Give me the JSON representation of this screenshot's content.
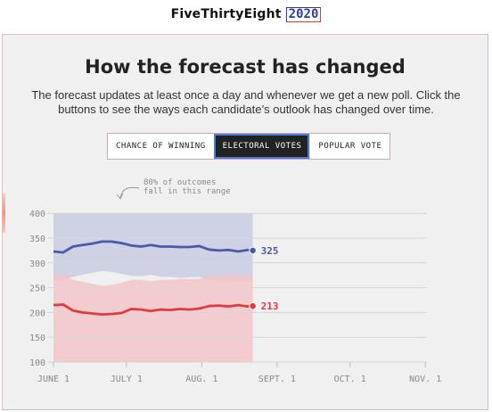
{
  "brand": {
    "name": "FiveThirtyEight",
    "year": "2020"
  },
  "card": {
    "title": "How the forecast has changed",
    "subtitle": "The forecast updates at least once a day and whenever we get a new poll. Click the buttons to see the ways each candidate’s outlook has changed over time."
  },
  "toggle": {
    "options": [
      "CHANCE OF WINNING",
      "ELECTORAL VOTES",
      "POPULAR VOTE"
    ],
    "selected": "ELECTORAL VOTES"
  },
  "colors": {
    "dem": "#4b5aa6",
    "rep": "#e03c3f",
    "dem_band": "#c9cde3",
    "rep_band": "#f3c6ca",
    "grid": "#d6d6d6"
  },
  "chart_data": {
    "type": "area",
    "annotation": [
      "80% of outcomes",
      "fall in this range"
    ],
    "y_ticks": [
      400,
      350,
      300,
      250,
      200,
      150,
      100
    ],
    "ylim": [
      100,
      400
    ],
    "x_ticks": [
      {
        "label": "JUNE 1",
        "day": 0
      },
      {
        "label": "JULY 1",
        "day": 30
      },
      {
        "label": "AUG. 1",
        "day": 61
      },
      {
        "label": "SEPT. 1",
        "day": 92
      },
      {
        "label": "OCT. 1",
        "day": 122
      },
      {
        "label": "NOV. 1",
        "day": 153
      }
    ],
    "series": [
      {
        "party": "dem",
        "final_label": "325",
        "x": [
          0,
          4,
          8,
          12,
          16,
          20,
          24,
          28,
          32,
          36,
          40,
          44,
          48,
          52,
          56,
          60,
          64,
          68,
          72,
          76,
          80,
          82
        ],
        "values": [
          323,
          321,
          333,
          336,
          339,
          343,
          343,
          340,
          335,
          333,
          336,
          333,
          333,
          332,
          332,
          334,
          327,
          325,
          326,
          323,
          326,
          325
        ],
        "upper": [
          400,
          400,
          400,
          400,
          400,
          400,
          400,
          400,
          400,
          400,
          400,
          400,
          400,
          400,
          400,
          400,
          400,
          400,
          400,
          400,
          400,
          400
        ],
        "lower": [
          266,
          264,
          272,
          276,
          280,
          284,
          282,
          278,
          274,
          273,
          276,
          272,
          272,
          270,
          271,
          272,
          266,
          264,
          264,
          262,
          265,
          264
        ]
      },
      {
        "party": "rep",
        "final_label": "213",
        "x": [
          0,
          4,
          8,
          12,
          16,
          20,
          24,
          28,
          32,
          36,
          40,
          44,
          48,
          52,
          56,
          60,
          64,
          68,
          72,
          76,
          80,
          82
        ],
        "values": [
          215,
          216,
          204,
          200,
          198,
          196,
          197,
          199,
          207,
          206,
          203,
          206,
          205,
          207,
          206,
          208,
          213,
          214,
          212,
          215,
          212,
          213
        ],
        "upper": [
          275,
          277,
          266,
          262,
          258,
          254,
          256,
          260,
          266,
          266,
          263,
          266,
          266,
          268,
          267,
          268,
          274,
          276,
          274,
          277,
          273,
          274
        ],
        "lower": [
          100,
          100,
          100,
          100,
          100,
          100,
          100,
          100,
          100,
          100,
          100,
          100,
          100,
          100,
          100,
          100,
          100,
          100,
          100,
          100,
          100,
          100
        ]
      }
    ]
  }
}
